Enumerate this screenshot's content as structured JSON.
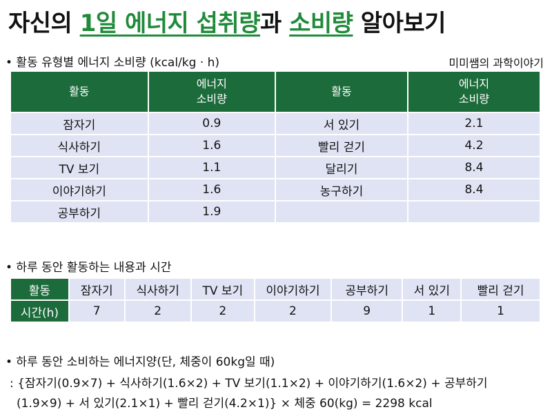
{
  "title": {
    "part1": "자신의 ",
    "part2": "1일 에너지 섭취량",
    "part3": "과 ",
    "part4": "소비량",
    "part5": " 알아보기"
  },
  "credit": "미미쌤의 과학이야기",
  "section1": {
    "heading": "• 활동 유형별 에너지 소비량 (kcal/kg · h)",
    "headers": [
      "활동",
      "에너지",
      "소비량",
      "활동",
      "에너지",
      "소비량"
    ],
    "rows": [
      [
        "잠자기",
        "0.9",
        "서 있기",
        "2.1"
      ],
      [
        "식사하기",
        "1.6",
        "빨리 걷기",
        "4.2"
      ],
      [
        "TV 보기",
        "1.1",
        "달리기",
        "8.4"
      ],
      [
        "이야기하기",
        "1.6",
        "농구하기",
        "8.4"
      ],
      [
        "공부하기",
        "1.9",
        "",
        ""
      ]
    ]
  },
  "section2": {
    "heading": "• 하루 동안 활동하는 내용과 시간",
    "row_label_activity": "활동",
    "row_label_time": "시간(h)",
    "activities": [
      "잠자기",
      "식사하기",
      "TV 보기",
      "이야기하기",
      "공부하기",
      "서 있기",
      "빨리 걷기"
    ],
    "hours": [
      "7",
      "2",
      "2",
      "2",
      "9",
      "1",
      "1"
    ]
  },
  "section3": {
    "heading": "• 하루 동안 소비하는 에너지양(단, 체중이 60kg일 때)",
    "line1": ": {잠자기(0.9×7) + 식사하기(1.6×2) + TV 보기(1.1×2) + 이야기하기(1.6×2) + 공부하기",
    "line2": "(1.9×9) + 서 있기(2.1×1) + 빨리 걷기(4.2×1)} × 체중 60(kg) = 2298 kcal"
  }
}
